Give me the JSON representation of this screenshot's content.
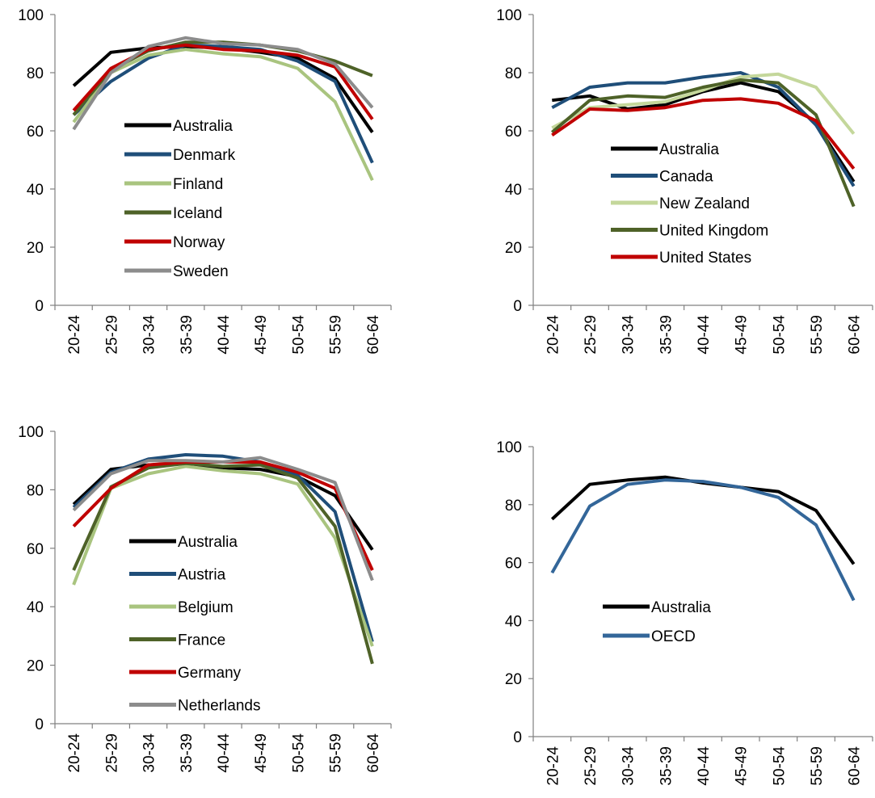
{
  "chart_data": [
    {
      "type": "line",
      "categories": [
        "20-24",
        "25-29",
        "30-34",
        "35-39",
        "40-44",
        "45-49",
        "50-54",
        "55-59",
        "60-64"
      ],
      "ylim": [
        0,
        100
      ],
      "yticks": [
        0,
        20,
        40,
        60,
        80,
        100
      ],
      "legend_position": "inside-left",
      "series": [
        {
          "name": "Australia",
          "color": "#000000",
          "values": [
            75.5,
            87,
            88.5,
            89,
            88.5,
            87,
            85,
            78,
            59.5
          ]
        },
        {
          "name": "Denmark",
          "color": "#1f4e79",
          "values": [
            65.5,
            77,
            85,
            89.5,
            89,
            88,
            84,
            77,
            49
          ]
        },
        {
          "name": "Finland",
          "color": "#a9c47f",
          "values": [
            63,
            80,
            86,
            88,
            86.5,
            85.5,
            81.5,
            70,
            43
          ]
        },
        {
          "name": "Iceland",
          "color": "#4e6228",
          "values": [
            65.5,
            81,
            87.5,
            90.5,
            90.5,
            89.5,
            87.5,
            84,
            79
          ]
        },
        {
          "name": "Norway",
          "color": "#c00000",
          "values": [
            67,
            81.5,
            88,
            89.5,
            88,
            87.5,
            86,
            82,
            64
          ]
        },
        {
          "name": "Sweden",
          "color": "#8c8c8c",
          "values": [
            60.5,
            80,
            89,
            92,
            90,
            89.5,
            88,
            83,
            68
          ]
        }
      ]
    },
    {
      "type": "line",
      "categories": [
        "20-24",
        "25-29",
        "30-34",
        "35-39",
        "40-44",
        "45-49",
        "50-54",
        "55-59",
        "60-64"
      ],
      "ylim": [
        0,
        100
      ],
      "yticks": [
        0,
        20,
        40,
        60,
        80,
        100
      ],
      "legend_position": "inside-bottom",
      "series": [
        {
          "name": "Australia",
          "color": "#000000",
          "values": [
            70.5,
            72,
            67.5,
            69,
            73.5,
            76.5,
            73.5,
            62.5,
            42.5
          ]
        },
        {
          "name": "Canada",
          "color": "#1f4e79",
          "values": [
            68,
            75,
            76.5,
            76.5,
            78.5,
            80,
            75,
            62,
            41
          ]
        },
        {
          "name": "New Zealand",
          "color": "#c4d79b",
          "values": [
            61,
            68,
            69,
            70,
            74,
            78.5,
            79.5,
            75,
            59
          ]
        },
        {
          "name": "United Kingdom",
          "color": "#4e6228",
          "values": [
            59.5,
            70.5,
            72,
            71.5,
            75,
            77.5,
            76.5,
            65.5,
            34
          ]
        },
        {
          "name": "United States",
          "color": "#c00000",
          "values": [
            58.5,
            67.5,
            67,
            68,
            70.5,
            71,
            69.5,
            63.5,
            47
          ]
        }
      ]
    },
    {
      "type": "line",
      "categories": [
        "20-24",
        "25-29",
        "30-34",
        "35-39",
        "40-44",
        "45-49",
        "50-54",
        "55-59",
        "60-64"
      ],
      "ylim": [
        0,
        100
      ],
      "yticks": [
        0,
        20,
        40,
        60,
        80,
        100
      ],
      "legend_position": "inside-left",
      "series": [
        {
          "name": "Australia",
          "color": "#000000",
          "values": [
            75,
            87,
            88.5,
            89,
            87.5,
            87,
            84.5,
            78,
            59.5
          ]
        },
        {
          "name": "Austria",
          "color": "#1f4e79",
          "values": [
            74,
            86,
            90.5,
            92,
            91.5,
            89.5,
            85,
            72.5,
            28
          ]
        },
        {
          "name": "Belgium",
          "color": "#a9c47f",
          "values": [
            47.5,
            80.5,
            85.5,
            88,
            86.5,
            85.5,
            82,
            63.5,
            26.5
          ]
        },
        {
          "name": "France",
          "color": "#4e6228",
          "values": [
            52.5,
            81,
            87.5,
            89,
            88,
            88.5,
            84,
            67.5,
            20.5
          ]
        },
        {
          "name": "Germany",
          "color": "#c00000",
          "values": [
            67.5,
            80.5,
            88.5,
            89.5,
            89.5,
            89.5,
            86,
            80.5,
            52.5
          ]
        },
        {
          "name": "Netherlands",
          "color": "#8c8c8c",
          "values": [
            73,
            85.5,
            90,
            90,
            89.5,
            91,
            87,
            82.5,
            49
          ]
        }
      ]
    },
    {
      "type": "line",
      "categories": [
        "20-24",
        "25-29",
        "30-34",
        "35-39",
        "40-44",
        "45-49",
        "50-54",
        "55-59",
        "60-64"
      ],
      "ylim": [
        0,
        100
      ],
      "yticks": [
        0,
        20,
        40,
        60,
        80,
        100
      ],
      "legend_position": "inside-left",
      "series": [
        {
          "name": "Australia",
          "color": "#000000",
          "values": [
            75,
            87,
            88.5,
            89.5,
            87.5,
            86,
            84.5,
            78,
            59.5
          ]
        },
        {
          "name": "OECD",
          "color": "#336699",
          "values": [
            56.5,
            79.5,
            87,
            88.5,
            88,
            86,
            82.5,
            73,
            47
          ]
        }
      ]
    }
  ]
}
